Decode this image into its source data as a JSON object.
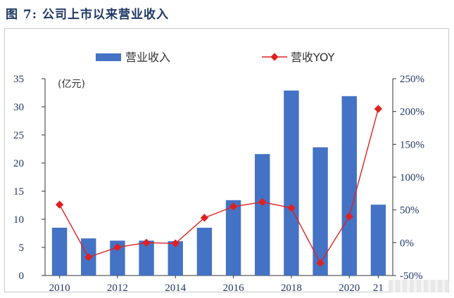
{
  "figure_title": "图 7:  公司上市以来营业收入",
  "chart_data": {
    "type": "bar+line",
    "categories": [
      "2010",
      "2011",
      "2012",
      "2013",
      "2014",
      "2015",
      "2016",
      "2017",
      "2018",
      "2019",
      "2020",
      "21"
    ],
    "x_tick_labels": [
      "2010",
      "2012",
      "2014",
      "2016",
      "2018",
      "2020",
      "21"
    ],
    "x_tick_categories": [
      "2010",
      "2012",
      "2014",
      "2016",
      "2018",
      "2020",
      "21"
    ],
    "series": [
      {
        "name": "营业收入",
        "type": "bar",
        "axis": "left",
        "color": "#4472c4",
        "values": [
          8.5,
          6.6,
          6.2,
          6.2,
          6.1,
          8.5,
          13.4,
          21.6,
          32.9,
          22.8,
          31.9,
          12.6
        ]
      },
      {
        "name": "营收YOY",
        "type": "line",
        "axis": "right",
        "color": "#e02020",
        "values": [
          58,
          -22,
          -7,
          0,
          -1,
          38,
          55,
          62,
          53,
          -31,
          40,
          204
        ]
      }
    ],
    "y_left": {
      "unit_label": "(亿元)",
      "min": 0,
      "max": 35,
      "ticks": [
        0,
        5,
        10,
        15,
        20,
        25,
        30,
        35
      ]
    },
    "y_right": {
      "min": -50,
      "max": 250,
      "ticks": [
        -50,
        0,
        50,
        100,
        150,
        200,
        250
      ],
      "tick_labels": [
        "-50%",
        "0%",
        "50%",
        "100%",
        "150%",
        "200%",
        "250%"
      ]
    },
    "legend_position": "top",
    "grid": false
  }
}
